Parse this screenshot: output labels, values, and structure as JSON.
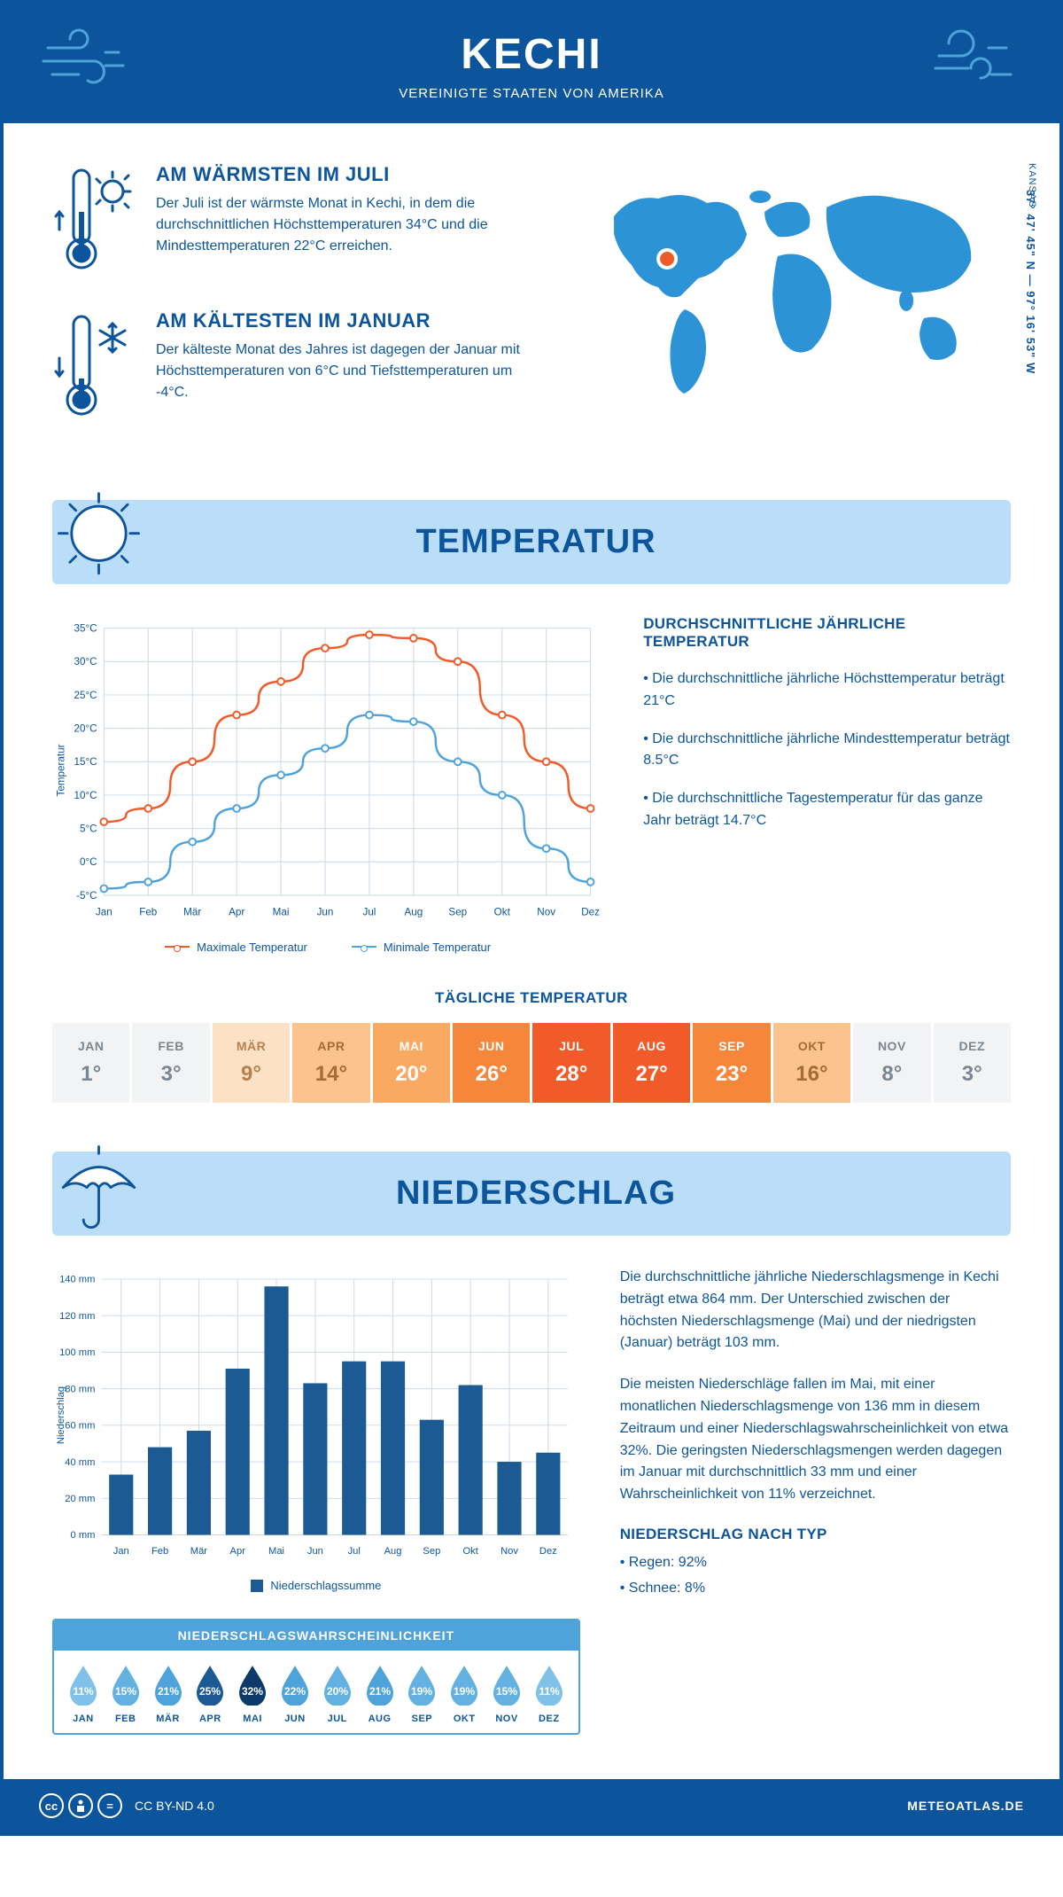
{
  "colors": {
    "primary": "#0c559c",
    "accent": "#f15a29",
    "light_blue": "#bbdef8",
    "mid_blue": "#4fa3db",
    "white": "#ffffff",
    "grid": "#c9d8e8"
  },
  "header": {
    "title": "KECHI",
    "subtitle": "VEREINIGTE STAATEN VON AMERIKA"
  },
  "intro": {
    "warm": {
      "title": "AM WÄRMSTEN IM JULI",
      "text": "Der Juli ist der wärmste Monat in Kechi, in dem die durchschnittlichen Höchsttemperaturen 34°C und die Mindesttemperaturen 22°C erreichen."
    },
    "cold": {
      "title": "AM KÄLTESTEN IM JANUAR",
      "text": "Der kälteste Monat des Jahres ist dagegen der Januar mit Höchsttemperaturen von 6°C und Tiefsttemperaturen um -4°C."
    },
    "state": "KANSAS",
    "coords": "37° 47' 45\" N — 97° 16' 53\" W"
  },
  "temperature": {
    "banner": "TEMPERATUR",
    "months": [
      "Jan",
      "Feb",
      "Mär",
      "Apr",
      "Mai",
      "Jun",
      "Jul",
      "Aug",
      "Sep",
      "Okt",
      "Nov",
      "Dez"
    ],
    "max_series": {
      "label": "Maximale Temperatur",
      "color": "#f15a29",
      "values": [
        6,
        8,
        15,
        22,
        27,
        32,
        34,
        33.5,
        30,
        22,
        15,
        8
      ]
    },
    "min_series": {
      "label": "Minimale Temperatur",
      "color": "#4fa3db",
      "values": [
        -4,
        -3,
        3,
        8,
        13,
        17,
        22,
        21,
        15,
        10,
        2,
        -3
      ]
    },
    "ylim": [
      -5,
      35
    ],
    "ytick_step": 5,
    "yaxis_label": "Temperatur",
    "info": {
      "title": "DURCHSCHNITTLICHE JÄHRLICHE TEMPERATUR",
      "p1": "• Die durchschnittliche jährliche Höchsttemperatur beträgt 21°C",
      "p2": "• Die durchschnittliche jährliche Mindesttemperatur beträgt 8.5°C",
      "p3": "• Die durchschnittliche Tagestemperatur für das ganze Jahr beträgt 14.7°C"
    },
    "daily_title": "TÄGLICHE TEMPERATUR",
    "daily": {
      "months": [
        "JAN",
        "FEB",
        "MÄR",
        "APR",
        "MAI",
        "JUN",
        "JUL",
        "AUG",
        "SEP",
        "OKT",
        "NOV",
        "DEZ"
      ],
      "values": [
        "1°",
        "3°",
        "9°",
        "14°",
        "20°",
        "26°",
        "28°",
        "27°",
        "23°",
        "16°",
        "8°",
        "3°"
      ],
      "bg": [
        "#f2f3f4",
        "#f2f3f4",
        "#fde1c4",
        "#fbc48e",
        "#f9a962",
        "#f5863a",
        "#f15a29",
        "#f15a29",
        "#f5863a",
        "#fbc48e",
        "#f2f3f4",
        "#f2f3f4"
      ],
      "fg": [
        "#7a8691",
        "#7a8691",
        "#b5814f",
        "#a56a35",
        "#ffffff",
        "#ffffff",
        "#ffffff",
        "#ffffff",
        "#ffffff",
        "#a56a35",
        "#7a8691",
        "#7a8691"
      ]
    }
  },
  "precipitation": {
    "banner": "NIEDERSCHLAG",
    "months": [
      "Jan",
      "Feb",
      "Mär",
      "Apr",
      "Mai",
      "Jun",
      "Jul",
      "Aug",
      "Sep",
      "Okt",
      "Nov",
      "Dez"
    ],
    "values": [
      33,
      48,
      57,
      91,
      136,
      83,
      95,
      95,
      63,
      82,
      40,
      45
    ],
    "ylim": [
      0,
      140
    ],
    "ytick_step": 20,
    "yaxis_label": "Niederschlag",
    "bar_color": "#1c5a94",
    "legend": "Niederschlagssumme",
    "text": {
      "p1": "Die durchschnittliche jährliche Niederschlagsmenge in Kechi beträgt etwa 864 mm. Der Unterschied zwischen der höchsten Niederschlagsmenge (Mai) und der niedrigsten (Januar) beträgt 103 mm.",
      "p2": "Die meisten Niederschläge fallen im Mai, mit einer monatlichen Niederschlagsmenge von 136 mm in diesem Zeitraum und einer Niederschlagswahrscheinlichkeit von etwa 32%. Die geringsten Niederschlagsmengen werden dagegen im Januar mit durchschnittlich 33 mm und einer Wahrscheinlichkeit von 11% verzeichnet.",
      "type_title": "NIEDERSCHLAG NACH TYP",
      "type1": "• Regen: 92%",
      "type2": "• Schnee: 8%"
    },
    "probability": {
      "title": "NIEDERSCHLAGSWAHRSCHEINLICHKEIT",
      "months": [
        "JAN",
        "FEB",
        "MÄR",
        "APR",
        "MAI",
        "JUN",
        "JUL",
        "AUG",
        "SEP",
        "OKT",
        "NOV",
        "DEZ"
      ],
      "values": [
        "11%",
        "15%",
        "21%",
        "25%",
        "32%",
        "22%",
        "20%",
        "21%",
        "19%",
        "19%",
        "15%",
        "11%"
      ],
      "colors": [
        "#7fc1e8",
        "#62b1e0",
        "#4fa3db",
        "#1c5a94",
        "#0c3b6b",
        "#4fa3db",
        "#62b1e0",
        "#4fa3db",
        "#62b1e0",
        "#62b1e0",
        "#62b1e0",
        "#7fc1e8"
      ]
    }
  },
  "footer": {
    "license": "CC BY-ND 4.0",
    "site": "METEOATLAS.DE"
  }
}
